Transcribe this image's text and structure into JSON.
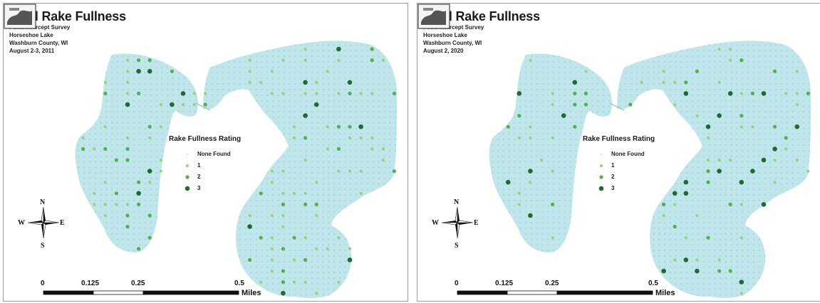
{
  "colors": {
    "water": "#bfe6ec",
    "none_found": "#9fd3a8",
    "rating_1": "#93d56e",
    "rating_2": "#4fb348",
    "rating_3": "#1f6b2c",
    "border": "#9a9a9a"
  },
  "maps": [
    {
      "title": "Total Rake Fullness",
      "subtitle_lines": [
        "Point-intercept Survey",
        "Horseshoe Lake",
        "Washburn County, WI",
        "August 2-3, 2011"
      ],
      "legend": {
        "title": "Rake Fullness Rating",
        "labels": [
          "None Found",
          "1",
          "2",
          "3"
        ]
      },
      "scale": {
        "labels": [
          "0",
          "0.125",
          "0.25",
          "0.5"
        ],
        "unit": "Miles"
      },
      "compass": {
        "n": "N",
        "s": "S",
        "e": "E",
        "w": "W"
      },
      "logo": "lake-map-logo"
    },
    {
      "title": "Total Rake Fullness",
      "subtitle_lines": [
        "Point-intercept Survey",
        "Horseshoe Lake",
        "Washburn County, WI",
        "August 2, 2020"
      ],
      "legend": {
        "title": "Rake Fullness Rating",
        "labels": [
          "None Found",
          "1",
          "2",
          "3"
        ]
      },
      "scale": {
        "labels": [
          "0",
          "0.125",
          "0.25",
          "0.5"
        ],
        "unit": "Miles"
      },
      "compass": {
        "n": "N",
        "s": "S",
        "e": "E",
        "w": "W"
      },
      "logo": "lake-map-logo"
    }
  ]
}
